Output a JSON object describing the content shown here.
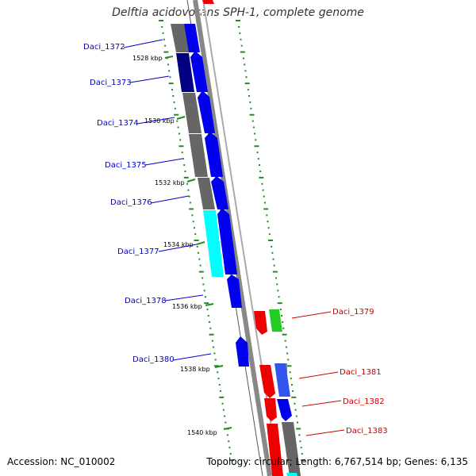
{
  "title": "Delftia acidovorans SPH-1, complete genome",
  "accession": "Accession: NC_010002",
  "summary": "Topology: circular; Length: 6,767,514 bp; Genes: 6,135",
  "scale_labels": [
    "1528 kbp",
    "1530 kbp",
    "1532 kbp",
    "1534 kbp",
    "1536 kbp",
    "1538 kbp",
    "1540 kbp"
  ],
  "genes_left": [
    "Daci_1372",
    "Daci_1373",
    "Daci_1374",
    "Daci_1375",
    "Daci_1376",
    "Daci_1377",
    "Daci_1378",
    "Daci_1380"
  ],
  "genes_right": [
    "Daci_1379",
    "Daci_1381",
    "Daci_1382",
    "Daci_1383"
  ],
  "colors": {
    "forward": "#0000ee",
    "reverse": "#ee0000",
    "label_forward": "#0000cc",
    "label_reverse": "#cc0000",
    "cog_gray": "#666666",
    "cog_navy": "#000080",
    "cog_cyan": "#00ffff",
    "cog_green": "#22cc22",
    "tick": "#228b22",
    "backbone": "#888888"
  }
}
